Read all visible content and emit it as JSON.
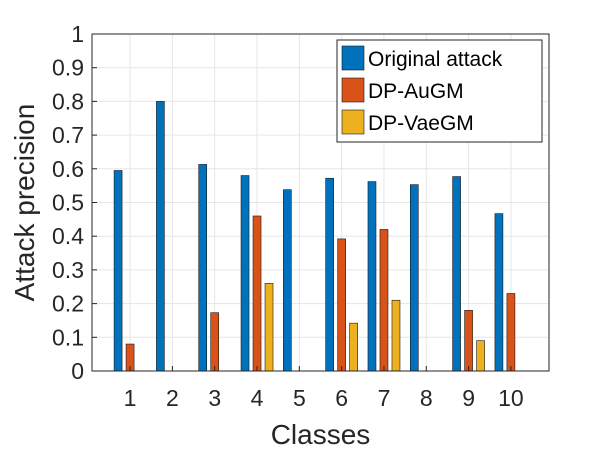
{
  "chart_data": {
    "type": "bar",
    "title": "",
    "xlabel": "Classes",
    "ylabel": "Attack precision",
    "categories": [
      "1",
      "2",
      "3",
      "4",
      "5",
      "6",
      "7",
      "8",
      "9",
      "10"
    ],
    "ylim": [
      0,
      1
    ],
    "yticks": [
      "0",
      "0.1",
      "0.2",
      "0.3",
      "0.4",
      "0.5",
      "0.6",
      "0.7",
      "0.8",
      "0.9",
      "1"
    ],
    "grid": true,
    "legend_position": "top-right",
    "series": [
      {
        "name": "Original attack",
        "color": "#0072BD",
        "values": [
          0.595,
          0.8,
          0.613,
          0.58,
          0.538,
          0.572,
          0.562,
          0.553,
          0.577,
          0.467
        ]
      },
      {
        "name": "DP-AuGM",
        "color": "#D95319",
        "values": [
          0.08,
          0.0,
          0.173,
          0.46,
          0.0,
          0.392,
          0.42,
          0.0,
          0.18,
          0.23
        ]
      },
      {
        "name": "DP-VaeGM",
        "color": "#EDB120",
        "values": [
          0.0,
          0.0,
          0.0,
          0.26,
          0.0,
          0.142,
          0.21,
          0.0,
          0.09,
          0.0
        ]
      }
    ]
  }
}
